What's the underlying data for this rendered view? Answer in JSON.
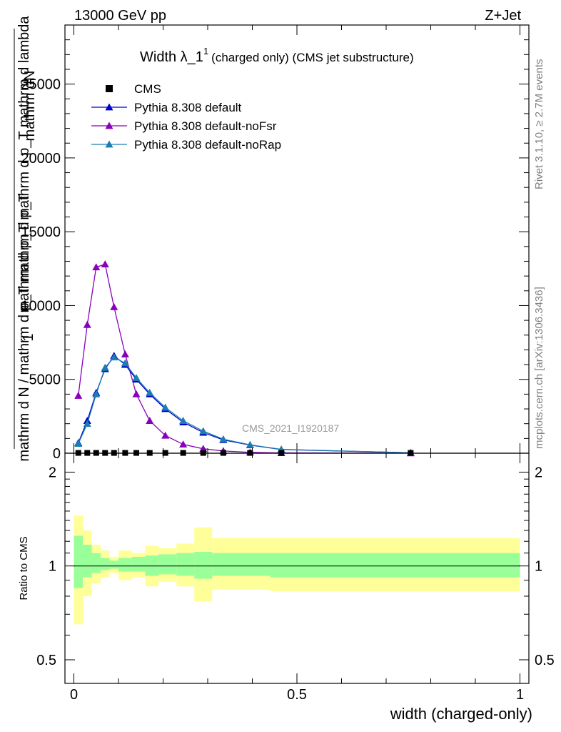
{
  "header": {
    "left": "13000 GeV pp",
    "right": "Z+Jet"
  },
  "plot": {
    "title_main": "Width λ_1",
    "title_sup": "1",
    "title_rest": "(charged only) (CMS jet substructure)",
    "ylabel_frac_top": "mathrm dN",
    "ylabel_frac_bottom": "mathrm d p_T mathrm d p_T mathrm d lambda",
    "ylabel_main": "1",
    "ylabel_main_bottom": "mathrm d N / mathrm d p_T mathrm d p_T",
    "ratio_ylabel": "Ratio to CMS",
    "xlabel": "width (charged-only)",
    "watermark": "CMS_2021_I1920187",
    "side_top": "Rivet 3.1.10, ≥ 2.7M events",
    "side_bottom": "mcplots.cern.ch [arXiv:1306.3436]"
  },
  "legend": [
    {
      "label": "CMS",
      "color": "#000000",
      "marker": "square"
    },
    {
      "label": "Pythia 8.308 default",
      "color": "#0000cc",
      "marker": "triangle"
    },
    {
      "label": "Pythia 8.308 default-noFsr",
      "color": "#8800bb",
      "marker": "triangle"
    },
    {
      "label": "Pythia 8.308 default-noRap",
      "color": "#1a7fb0",
      "marker": "triangle"
    }
  ],
  "chart_data": {
    "type": "line",
    "xlabel": "width (charged-only)",
    "xlim": [
      -0.02,
      1.02
    ],
    "ylim": [
      0,
      29000
    ],
    "yticks": [
      0,
      5000,
      10000,
      15000,
      20000,
      25000
    ],
    "ytick_labels": [
      "0",
      "5000",
      "10000",
      "15000",
      "20000",
      "25000"
    ],
    "xticks": [
      0,
      0.5,
      1
    ],
    "xtick_labels": [
      "0",
      "0.5",
      "1"
    ],
    "x": [
      0.01,
      0.03,
      0.05,
      0.07,
      0.09,
      0.115,
      0.14,
      0.17,
      0.205,
      0.245,
      0.29,
      0.335,
      0.395,
      0.465,
      0.755
    ],
    "series": [
      {
        "name": "CMS",
        "values": [
          20,
          20,
          20,
          20,
          20,
          20,
          20,
          20,
          20,
          20,
          20,
          20,
          20,
          20,
          20
        ]
      },
      {
        "name": "Pythia 8.308 default",
        "values": [
          700,
          2200,
          4100,
          5700,
          6600,
          6000,
          5000,
          4000,
          3000,
          2100,
          1400,
          900,
          550,
          250,
          30
        ]
      },
      {
        "name": "Pythia 8.308 default-noFsr",
        "values": [
          3900,
          8700,
          12600,
          12800,
          9900,
          6700,
          4000,
          2200,
          1200,
          600,
          300,
          150,
          60,
          20,
          5
        ]
      },
      {
        "name": "Pythia 8.308 default-noRap",
        "values": [
          650,
          2000,
          4000,
          5800,
          6500,
          6100,
          5100,
          4100,
          3100,
          2200,
          1500,
          950,
          570,
          260,
          30
        ]
      }
    ],
    "ratio": {
      "ylim": [
        0.42,
        2.3
      ],
      "scale": "log",
      "yticks": [
        0.5,
        1,
        2
      ],
      "ytick_labels": [
        "0.5",
        "1",
        "2"
      ],
      "bin_edges": [
        0.0,
        0.02,
        0.04,
        0.06,
        0.08,
        0.1,
        0.13,
        0.16,
        0.19,
        0.23,
        0.27,
        0.31,
        0.36,
        0.44,
        0.5,
        1.0
      ],
      "inner_band": [
        [
          0.85,
          1.25
        ],
        [
          0.92,
          1.17
        ],
        [
          0.95,
          1.1
        ],
        [
          0.97,
          1.06
        ],
        [
          0.98,
          1.04
        ],
        [
          0.96,
          1.06
        ],
        [
          0.96,
          1.07
        ],
        [
          0.93,
          1.08
        ],
        [
          0.94,
          1.09
        ],
        [
          0.93,
          1.1
        ],
        [
          0.91,
          1.11
        ],
        [
          0.93,
          1.1
        ],
        [
          0.93,
          1.1
        ],
        [
          0.92,
          1.1
        ],
        [
          0.92,
          1.1
        ]
      ],
      "outer_band": [
        [
          0.65,
          1.45
        ],
        [
          0.8,
          1.3
        ],
        [
          0.88,
          1.17
        ],
        [
          0.92,
          1.12
        ],
        [
          0.95,
          1.07
        ],
        [
          0.9,
          1.12
        ],
        [
          0.92,
          1.1
        ],
        [
          0.86,
          1.16
        ],
        [
          0.89,
          1.14
        ],
        [
          0.86,
          1.18
        ],
        [
          0.77,
          1.33
        ],
        [
          0.84,
          1.23
        ],
        [
          0.84,
          1.23
        ],
        [
          0.83,
          1.23
        ],
        [
          0.83,
          1.23
        ]
      ]
    }
  }
}
